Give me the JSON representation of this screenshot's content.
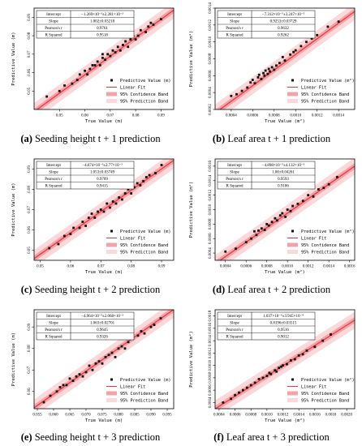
{
  "figure": {
    "panels": [
      {
        "id": "a",
        "letter": "(a)",
        "caption": "Seeding height t + 1 prediction",
        "stats": {
          "labels": [
            "Intercept",
            "Slope",
            "Pearson's r",
            "R Squared"
          ],
          "values": [
            "−1.269×10⁻³±2.281×10⁻³",
            "1.002±0.03218",
            "0.9761",
            "0.9518"
          ]
        }
      },
      {
        "id": "b",
        "letter": "(b)",
        "caption": "Leaf area t + 1 prediction",
        "stats": {
          "labels": [
            "Intercept",
            "Slope",
            "Pearson's r",
            "R Squared"
          ],
          "values": [
            "−7.312×10⁻⁵±3.247×10⁻⁵",
            "0.9253±0.03729",
            "0.9632",
            "0.9262"
          ]
        }
      },
      {
        "id": "c",
        "letter": "(c)",
        "caption": "Seeding height t + 2 prediction",
        "stats": {
          "labels": [
            "Intercept",
            "Slope",
            "Pearson's r",
            "R Squared"
          ],
          "values": [
            "−4.674×10⁻³±2.77×10⁻³",
            "1.053±0.03749",
            "0.9709",
            "0.9415"
          ]
        }
      },
      {
        "id": "d",
        "letter": "(d)",
        "caption": "Leaf area t + 2 prediction",
        "stats": {
          "labels": [
            "Intercept",
            "Slope",
            "Pearson's r",
            "R Squared"
          ],
          "values": [
            "−4.898×10⁻⁵±4.132×10⁻⁵",
            "1.00±0.04261",
            "0.9593",
            "0.9186"
          ]
        }
      },
      {
        "id": "e",
        "letter": "(e)",
        "caption": "Seeding height t + 3 prediction",
        "stats": {
          "labels": [
            "Intercept",
            "Slope",
            "Pearson's r",
            "R Squared"
          ],
          "values": [
            "−4.964×10⁻³±2.068×10⁻³",
            "1.063±0.02701",
            "0.9645",
            "0.9326"
          ]
        }
      },
      {
        "id": "f",
        "letter": "(f)",
        "caption": "Leaf area t + 3 prediction",
        "stats": {
          "labels": [
            "Intercept",
            "Slope",
            "Pearson's r",
            "R Squared"
          ],
          "values": [
            "1.037×10⁻⁵±3.945×10⁻⁴",
            "0.8196±0.03515",
            "0.9516",
            "0.9012"
          ]
        }
      }
    ],
    "legend": {
      "points": "Predictive Value (m)",
      "points_area": "Predictive Value (m²)",
      "fit": "Linear Fit",
      "confidence": "95% Confidence Band",
      "prediction": "95% Prediction Band"
    },
    "colors": {
      "points": "#111111",
      "fit": "#e8333c",
      "confidence": "#f3a3a7",
      "prediction": "#fbd8da"
    }
  },
  "chart_data": [
    {
      "type": "scatter",
      "panel": "a",
      "xlabel": "True Value (m)",
      "ylabel": "Predictive Value (m)",
      "xlim": [
        0.04,
        0.095
      ],
      "ylim": [
        0.04,
        0.095
      ],
      "xticks": [
        "0.05",
        "0.06",
        "0.07",
        "0.08",
        "0.09"
      ],
      "yticks": [
        "0.05",
        "0.06",
        "0.07",
        "0.08",
        "0.09"
      ],
      "fit": {
        "intercept": -0.001269,
        "slope": 1.002
      },
      "points": {
        "x": [
          0.045,
          0.05,
          0.052,
          0.055,
          0.057,
          0.058,
          0.06,
          0.061,
          0.062,
          0.063,
          0.064,
          0.065,
          0.066,
          0.067,
          0.067,
          0.068,
          0.069,
          0.07,
          0.071,
          0.072,
          0.073,
          0.074,
          0.075,
          0.076,
          0.077,
          0.078,
          0.079,
          0.08,
          0.081,
          0.082,
          0.084,
          0.085,
          0.086,
          0.087,
          0.09
        ],
        "y": [
          0.047,
          0.05,
          0.053,
          0.054,
          0.056,
          0.059,
          0.061,
          0.059,
          0.062,
          0.064,
          0.064,
          0.066,
          0.064,
          0.068,
          0.07,
          0.067,
          0.07,
          0.069,
          0.072,
          0.071,
          0.074,
          0.072,
          0.075,
          0.077,
          0.074,
          0.078,
          0.08,
          0.078,
          0.08,
          0.083,
          0.082,
          0.085,
          0.087,
          0.086,
          0.089
        ]
      }
    },
    {
      "type": "scatter",
      "panel": "b",
      "xlabel": "True Value (m²)",
      "ylabel": "Predictive Value (m²)",
      "xlim": [
        0.00025,
        0.00155
      ],
      "ylim": [
        0.0002,
        0.0014
      ],
      "xticks": [
        "0.0004",
        "0.0006",
        "0.0008",
        "0.0010",
        "0.0012",
        "0.0014"
      ],
      "yticks": [
        "0.0002",
        "0.0004",
        "0.0006",
        "0.0008",
        "0.0010",
        "0.0012",
        "0.0014"
      ],
      "fit": {
        "intercept": -7.312e-05,
        "slope": 0.9253
      },
      "points": {
        "x": [
          0.0004,
          0.00045,
          0.0005,
          0.00055,
          0.00058,
          0.0006,
          0.00062,
          0.00065,
          0.00066,
          0.00068,
          0.0007,
          0.00071,
          0.00072,
          0.00074,
          0.00075,
          0.00076,
          0.00078,
          0.0008,
          0.00082,
          0.00085,
          0.00088,
          0.0009,
          0.00095,
          0.00098,
          0.001,
          0.00105,
          0.0011,
          0.00115,
          0.0012,
          0.0013,
          0.0014
        ],
        "y": [
          0.00036,
          0.00038,
          0.00042,
          0.00046,
          0.00052,
          0.00055,
          0.00051,
          0.00058,
          0.00061,
          0.00056,
          0.00063,
          0.0006,
          0.00066,
          0.00062,
          0.00068,
          0.00065,
          0.0007,
          0.00067,
          0.00072,
          0.00075,
          0.00082,
          0.00078,
          0.00085,
          0.00088,
          0.0009,
          0.00095,
          0.001,
          0.00104,
          0.00108,
          0.00118,
          0.00124
        ]
      }
    },
    {
      "type": "scatter",
      "panel": "c",
      "xlabel": "True Value (m)",
      "ylabel": "Predictive Value (m)",
      "xlim": [
        0.048,
        0.094
      ],
      "ylim": [
        0.045,
        0.095
      ],
      "xticks": [
        "0.05",
        "0.06",
        "0.07",
        "0.08",
        "0.09"
      ],
      "yticks": [
        "0.05",
        "0.06",
        "0.07",
        "0.08",
        "0.09"
      ],
      "fit": {
        "intercept": -0.004674,
        "slope": 1.053
      },
      "points": {
        "x": [
          0.053,
          0.056,
          0.058,
          0.06,
          0.061,
          0.063,
          0.064,
          0.065,
          0.066,
          0.067,
          0.068,
          0.069,
          0.07,
          0.071,
          0.072,
          0.073,
          0.074,
          0.075,
          0.076,
          0.077,
          0.078,
          0.079,
          0.08,
          0.081,
          0.082,
          0.083,
          0.084,
          0.085,
          0.086,
          0.088,
          0.09
        ],
        "y": [
          0.051,
          0.053,
          0.057,
          0.058,
          0.061,
          0.061,
          0.064,
          0.062,
          0.066,
          0.068,
          0.066,
          0.069,
          0.07,
          0.069,
          0.073,
          0.071,
          0.074,
          0.073,
          0.076,
          0.075,
          0.078,
          0.08,
          0.078,
          0.081,
          0.083,
          0.082,
          0.084,
          0.086,
          0.087,
          0.088,
          0.092
        ]
      }
    },
    {
      "type": "scatter",
      "panel": "d",
      "xlabel": "True Value (m²)",
      "ylabel": "Predictive Value (m²)",
      "xlim": [
        0.0003,
        0.00165
      ],
      "ylim": [
        0.0003,
        0.0017
      ],
      "xticks": [
        "0.0004",
        "0.0006",
        "0.0008",
        "0.0010",
        "0.0012",
        "0.0014",
        "0.0016"
      ],
      "yticks": [
        "0.0004",
        "0.0006",
        "0.0008",
        "0.0010",
        "0.0012",
        "0.0014",
        "0.0016"
      ],
      "fit": {
        "intercept": -4.898e-05,
        "slope": 1.0
      },
      "points": {
        "x": [
          0.0004,
          0.0005,
          0.0006,
          0.00065,
          0.00068,
          0.0007,
          0.00072,
          0.00075,
          0.00078,
          0.0008,
          0.00082,
          0.00085,
          0.00088,
          0.0009,
          0.00093,
          0.00095,
          0.00098,
          0.001,
          0.00103,
          0.00105,
          0.0011,
          0.00115,
          0.0012,
          0.00125,
          0.0013,
          0.00135,
          0.0014,
          0.00148
        ],
        "y": [
          0.00042,
          0.00046,
          0.00055,
          0.0006,
          0.0007,
          0.00065,
          0.00071,
          0.00074,
          0.00072,
          0.0008,
          0.00078,
          0.00083,
          0.00088,
          0.00085,
          0.00092,
          0.00095,
          0.0009,
          0.001,
          0.00098,
          0.00105,
          0.00108,
          0.00112,
          0.0012,
          0.00118,
          0.00128,
          0.0013,
          0.00135,
          0.00145
        ]
      }
    },
    {
      "type": "scatter",
      "panel": "e",
      "xlabel": "True Value (m)",
      "ylabel": "Predictive Value (m)",
      "xlim": [
        0.054,
        0.097
      ],
      "ylim": [
        0.052,
        0.098
      ],
      "xticks": [
        "0.055",
        "0.060",
        "0.065",
        "0.070",
        "0.075",
        "0.080",
        "0.085",
        "0.090",
        "0.095"
      ],
      "yticks": [
        "0.06",
        "0.07",
        "0.08",
        "0.09"
      ],
      "fit": {
        "intercept": -0.004964,
        "slope": 1.063
      },
      "points": {
        "x": [
          0.057,
          0.059,
          0.061,
          0.062,
          0.063,
          0.064,
          0.065,
          0.066,
          0.067,
          0.068,
          0.069,
          0.07,
          0.071,
          0.072,
          0.073,
          0.074,
          0.075,
          0.076,
          0.077,
          0.078,
          0.079,
          0.08,
          0.081,
          0.082,
          0.083,
          0.084,
          0.086,
          0.087,
          0.088,
          0.09,
          0.091,
          0.093
        ],
        "y": [
          0.055,
          0.058,
          0.06,
          0.062,
          0.063,
          0.063,
          0.066,
          0.065,
          0.067,
          0.068,
          0.067,
          0.069,
          0.072,
          0.07,
          0.073,
          0.074,
          0.073,
          0.076,
          0.077,
          0.078,
          0.076,
          0.08,
          0.081,
          0.08,
          0.083,
          0.085,
          0.086,
          0.088,
          0.087,
          0.09,
          0.091,
          0.094
        ]
      }
    },
    {
      "type": "scatter",
      "panel": "f",
      "xlabel": "True Value (m²)",
      "ylabel": "Predictive Value (m²)",
      "xlim": [
        0.00035,
        0.0021
      ],
      "ylim": [
        0.0003,
        0.0019
      ],
      "xticks": [
        "0.0004",
        "0.0006",
        "0.0008",
        "0.0010",
        "0.0012",
        "0.0014",
        "0.0016",
        "0.0018",
        "0.0020"
      ],
      "yticks": [
        "0.0004",
        "0.0006",
        "0.0008",
        "0.0010",
        "0.0012",
        "0.0014",
        "0.0016",
        "0.0018"
      ],
      "fit": {
        "intercept": 1.037e-05,
        "slope": 0.8196
      },
      "points": {
        "x": [
          0.00045,
          0.00055,
          0.0006,
          0.00065,
          0.0007,
          0.00075,
          0.0008,
          0.00085,
          0.0009,
          0.00095,
          0.001,
          0.00103,
          0.00105,
          0.0011,
          0.00112,
          0.00115,
          0.00118,
          0.0012,
          0.00125,
          0.0013,
          0.00135,
          0.0014,
          0.00145,
          0.0015,
          0.0016,
          0.0017,
          0.0018
        ],
        "y": [
          0.0004,
          0.00046,
          0.00052,
          0.00056,
          0.0006,
          0.00064,
          0.00068,
          0.00072,
          0.00078,
          0.0008,
          0.00083,
          0.00088,
          0.00086,
          0.00092,
          0.0009,
          0.00096,
          0.00098,
          0.001,
          0.00102,
          0.00108,
          0.0011,
          0.00116,
          0.00118,
          0.00124,
          0.0013,
          0.0014,
          0.0015
        ]
      }
    }
  ]
}
